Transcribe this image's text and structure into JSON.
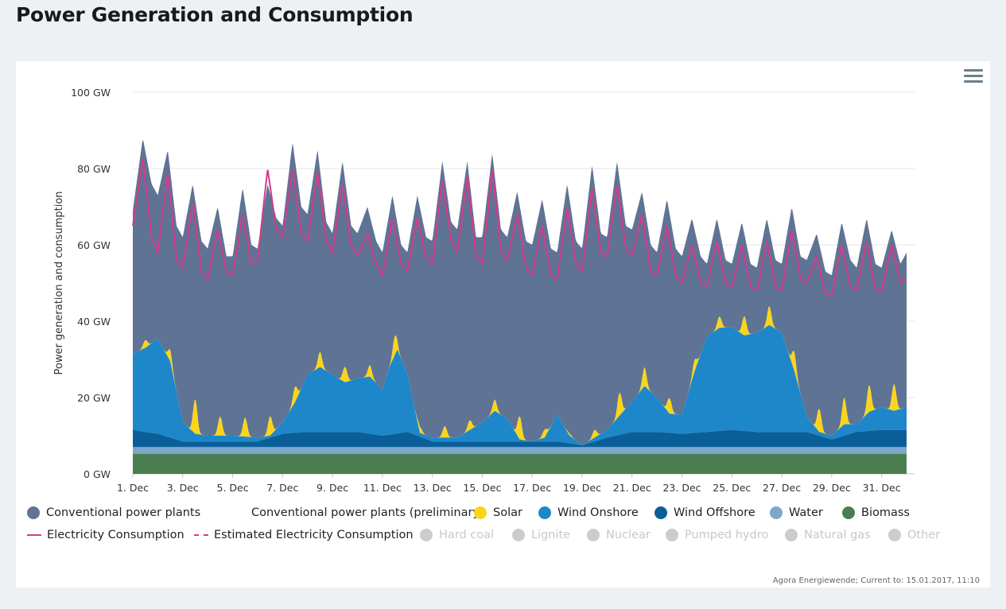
{
  "title": "Power Generation and Consumption",
  "credits": "Agora Energiewende; Current to: 15.01.2017, 11:10",
  "menu_icon": "hamburger-menu-icon",
  "chart_data": {
    "type": "area",
    "x_unit": "day of December",
    "x_range": [
      1,
      32
    ],
    "ylabel": "Power generation and consumption",
    "ylim": [
      0,
      100
    ],
    "y_ticks": [
      "0 GW",
      "20 GW",
      "40 GW",
      "60 GW",
      "80 GW",
      "100 GW"
    ],
    "x_ticks": [
      "1. Dec",
      "3. Dec",
      "5. Dec",
      "7. Dec",
      "9. Dec",
      "11. Dec",
      "13. Dec",
      "15. Dec",
      "17. Dec",
      "19. Dec",
      "21. Dec",
      "23. Dec",
      "25. Dec",
      "27. Dec",
      "29. Dec",
      "31. Dec"
    ],
    "grid": true,
    "stacking": "stacked",
    "colors": {
      "Biomass": "#4a7d4f",
      "Water": "#7aa7cb",
      "Wind Offshore": "#0b5f99",
      "Wind Onshore": "#1e87c9",
      "Solar": "#f9d51c",
      "Conventional power plants": "#5f7394",
      "Electricity Consumption": "#d43b8d"
    },
    "biomass_gw": 5.2,
    "water_gw": 1.8,
    "wind_offshore": {
      "x": [
        1,
        2,
        3,
        4,
        5,
        6,
        7,
        8,
        9,
        10,
        11,
        12,
        13,
        14,
        15,
        16,
        17,
        18,
        19,
        20,
        21,
        22,
        23,
        24,
        25,
        26,
        27,
        28,
        29,
        30,
        31,
        32
      ],
      "y": [
        4.5,
        3.5,
        1.5,
        1.5,
        1.5,
        1.5,
        3.5,
        4,
        4,
        4,
        3,
        4,
        1.5,
        1.5,
        1.5,
        1.5,
        1.5,
        1.5,
        0.5,
        2.5,
        4,
        4,
        3.5,
        4,
        4.5,
        4,
        4,
        4,
        2,
        4,
        4.5,
        4.5
      ]
    },
    "wind_onshore": {
      "x": [
        1,
        1.5,
        2,
        2.5,
        3,
        3.5,
        4,
        5,
        6,
        6.5,
        7,
        7.5,
        8,
        8.5,
        9,
        9.5,
        10,
        10.5,
        11,
        11.3,
        11.6,
        12,
        12.5,
        13,
        13.5,
        14,
        15,
        15.5,
        16,
        16.5,
        17,
        17.5,
        18,
        18.5,
        19,
        19.5,
        20,
        20.5,
        21,
        21.5,
        22,
        22.5,
        23,
        23.5,
        24,
        24.5,
        25,
        25.5,
        26,
        26.5,
        27,
        27.5,
        28,
        28.5,
        29,
        29.5,
        30,
        30.5,
        31,
        31.5,
        32
      ],
      "y": [
        20,
        22,
        25,
        20,
        5,
        2,
        1.5,
        1.5,
        1,
        0.5,
        3,
        8,
        15,
        17,
        15,
        13,
        14,
        15,
        12,
        18,
        22,
        15,
        1,
        1,
        1,
        1,
        5,
        8,
        6,
        0.5,
        0,
        1,
        7,
        2,
        0,
        1,
        2,
        5,
        8,
        12,
        9,
        5,
        5,
        16,
        25,
        27,
        27,
        25,
        26,
        28,
        26,
        16,
        4,
        1,
        1,
        3,
        2,
        5,
        6,
        5,
        6
      ]
    },
    "solar_peaks": {
      "x": [
        1.5,
        2.5,
        3.5,
        4.5,
        5.5,
        6.5,
        7.5,
        8.5,
        9.5,
        10.5,
        11.5,
        12.5,
        13.5,
        14.5,
        15.5,
        16.5,
        17.5,
        18.5,
        19.5,
        20.5,
        21.5,
        22.5,
        23.5,
        24.5,
        25.5,
        26.5,
        27.5,
        28.5,
        29.5,
        30.5,
        31.5
      ],
      "y": [
        2,
        3,
        9,
        5,
        5,
        5,
        4,
        4,
        4,
        3,
        5,
        1.5,
        3,
        2.5,
        3,
        6,
        2,
        0.5,
        2,
        6,
        5,
        4,
        3,
        3,
        5,
        5,
        5,
        6,
        7,
        7,
        7
      ]
    },
    "total_generation": {
      "x": [
        1,
        1.4,
        1.75,
        2,
        2.4,
        2.75,
        3,
        3.4,
        3.75,
        4,
        4.4,
        4.75,
        5,
        5.4,
        5.75,
        6,
        6.4,
        6.75,
        7,
        7.4,
        7.75,
        8,
        8.4,
        8.75,
        9,
        9.4,
        9.75,
        10,
        10.4,
        10.75,
        11,
        11.4,
        11.75,
        12,
        12.4,
        12.75,
        13,
        13.4,
        13.75,
        14,
        14.4,
        14.75,
        15,
        15.4,
        15.75,
        16,
        16.4,
        16.75,
        17,
        17.4,
        17.75,
        18,
        18.4,
        18.75,
        19,
        19.4,
        19.75,
        20,
        20.4,
        20.75,
        21,
        21.4,
        21.75,
        22,
        22.4,
        22.75,
        23,
        23.4,
        23.75,
        24,
        24.4,
        24.75,
        25,
        25.4,
        25.75,
        26,
        26.4,
        26.75,
        27,
        27.4,
        27.75,
        28,
        28.4,
        28.75,
        29,
        29.4,
        29.75,
        30,
        30.4,
        30.75,
        31,
        31.4,
        31.75,
        32
      ],
      "y": [
        69,
        88,
        76,
        73,
        85,
        65,
        62,
        76,
        61,
        59,
        70,
        57,
        57,
        75,
        60,
        59,
        76,
        67,
        65,
        87,
        70,
        68,
        85,
        66,
        63,
        82,
        65,
        63,
        70,
        61,
        58,
        73,
        60,
        58,
        73,
        62,
        61,
        82,
        66,
        64,
        82,
        62,
        62,
        84,
        64,
        62,
        74,
        61,
        60,
        72,
        59,
        58,
        76,
        61,
        59,
        81,
        63,
        62,
        82,
        65,
        64,
        74,
        60,
        58,
        72,
        59,
        57,
        67,
        57,
        55,
        67,
        56,
        55,
        66,
        55,
        54,
        67,
        56,
        55,
        70,
        57,
        56,
        63,
        53,
        52,
        66,
        56,
        54,
        67,
        55,
        54,
        64,
        55,
        58
      ]
    },
    "consumption": {
      "x": [
        1,
        1.4,
        1.75,
        2,
        2.4,
        2.75,
        3,
        3.4,
        3.75,
        4,
        4.4,
        4.75,
        5,
        5.4,
        5.75,
        6,
        6.4,
        6.75,
        7,
        7.4,
        7.75,
        8,
        8.4,
        8.75,
        9,
        9.4,
        9.75,
        10,
        10.4,
        10.75,
        11,
        11.4,
        11.75,
        12,
        12.4,
        12.75,
        13,
        13.4,
        13.75,
        14,
        14.4,
        14.75,
        15,
        15.4,
        15.75,
        16,
        16.4,
        16.75,
        17,
        17.4,
        17.75,
        18,
        18.4,
        18.75,
        19,
        19.4,
        19.75,
        20,
        20.4,
        20.75,
        21,
        21.4,
        21.75,
        22,
        22.4,
        22.75,
        23,
        23.4,
        23.75,
        24,
        24.4,
        24.75,
        25,
        25.4,
        25.75,
        26,
        26.4,
        26.75,
        27,
        27.4,
        27.75,
        28,
        28.4,
        28.75,
        29,
        29.4,
        29.75,
        30,
        30.4,
        30.75,
        31,
        31.4,
        31.75,
        32
      ],
      "y": [
        65,
        83,
        62,
        58,
        79,
        56,
        54,
        71,
        53,
        51,
        64,
        53,
        52,
        68,
        55,
        56,
        80,
        64,
        62,
        80,
        63,
        61,
        79,
        61,
        58,
        76,
        60,
        57,
        63,
        55,
        52,
        67,
        55,
        53,
        67,
        57,
        55,
        77,
        61,
        58,
        78,
        57,
        55,
        80,
        58,
        56,
        68,
        54,
        52,
        65,
        52,
        51,
        70,
        55,
        53,
        75,
        58,
        57,
        76,
        59,
        57,
        68,
        53,
        52,
        65,
        52,
        50,
        60,
        50,
        49,
        61,
        50,
        49,
        60,
        49,
        48,
        61,
        49,
        48,
        64,
        51,
        50,
        57,
        47,
        47,
        60,
        49,
        48,
        61,
        48,
        48,
        60,
        50,
        51
      ]
    },
    "legend": [
      {
        "label": "Conventional power plants",
        "swatch": "dot",
        "color": "#5f7394",
        "enabled": true
      },
      {
        "label": "Conventional power plants (preliminary)",
        "swatch": "none",
        "color": "",
        "enabled": true
      },
      {
        "label": "Solar",
        "swatch": "dot",
        "color": "#f9d51c",
        "enabled": true
      },
      {
        "label": "Wind Onshore",
        "swatch": "dot",
        "color": "#1e87c9",
        "enabled": true
      },
      {
        "label": "Wind Offshore",
        "swatch": "dot",
        "color": "#0b5f99",
        "enabled": true
      },
      {
        "label": "Water",
        "swatch": "dot",
        "color": "#7aa7cb",
        "enabled": true
      },
      {
        "label": "Biomass",
        "swatch": "dot",
        "color": "#4a7d4f",
        "enabled": true
      },
      {
        "label": "Electricity Consumption",
        "swatch": "line",
        "color": "#d43b8d",
        "enabled": true
      },
      {
        "label": "Estimated Electricity Consumption",
        "swatch": "dash",
        "color": "#d43b8d",
        "enabled": true
      },
      {
        "label": "Hard coal",
        "swatch": "dot",
        "color": "#cccccc",
        "enabled": false
      },
      {
        "label": "Lignite",
        "swatch": "dot",
        "color": "#cccccc",
        "enabled": false
      },
      {
        "label": "Nuclear",
        "swatch": "dot",
        "color": "#cccccc",
        "enabled": false
      },
      {
        "label": "Pumped hydro",
        "swatch": "dot",
        "color": "#cccccc",
        "enabled": false
      },
      {
        "label": "Natural gas",
        "swatch": "dot",
        "color": "#cccccc",
        "enabled": false
      },
      {
        "label": "Other",
        "swatch": "dot",
        "color": "#cccccc",
        "enabled": false
      }
    ]
  }
}
